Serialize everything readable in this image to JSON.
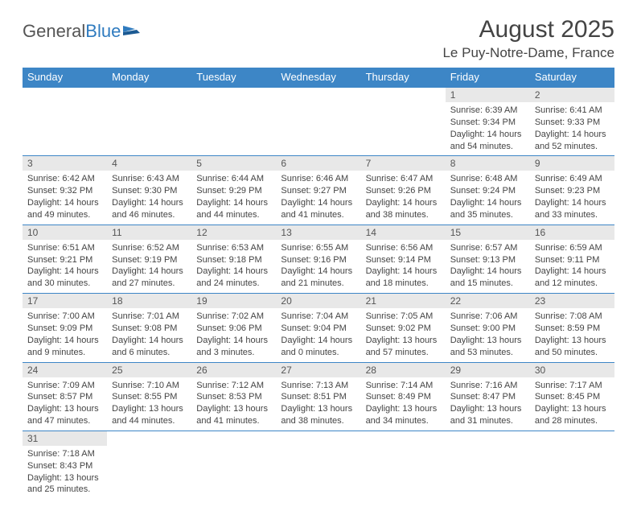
{
  "logo": {
    "text1": "General",
    "text2": "Blue"
  },
  "title": "August 2025",
  "location": "Le Puy-Notre-Dame, France",
  "weekdays": [
    "Sunday",
    "Monday",
    "Tuesday",
    "Wednesday",
    "Thursday",
    "Friday",
    "Saturday"
  ],
  "colors": {
    "header_bg": "#3d86c6",
    "header_fg": "#ffffff",
    "daynum_bg": "#e8e8e8",
    "rule": "#3d86c6"
  },
  "weeks": [
    [
      null,
      null,
      null,
      null,
      null,
      {
        "n": "1",
        "sunrise": "6:39 AM",
        "sunset": "9:34 PM",
        "day_h": "14",
        "day_m": "54"
      },
      {
        "n": "2",
        "sunrise": "6:41 AM",
        "sunset": "9:33 PM",
        "day_h": "14",
        "day_m": "52"
      }
    ],
    [
      {
        "n": "3",
        "sunrise": "6:42 AM",
        "sunset": "9:32 PM",
        "day_h": "14",
        "day_m": "49"
      },
      {
        "n": "4",
        "sunrise": "6:43 AM",
        "sunset": "9:30 PM",
        "day_h": "14",
        "day_m": "46"
      },
      {
        "n": "5",
        "sunrise": "6:44 AM",
        "sunset": "9:29 PM",
        "day_h": "14",
        "day_m": "44"
      },
      {
        "n": "6",
        "sunrise": "6:46 AM",
        "sunset": "9:27 PM",
        "day_h": "14",
        "day_m": "41"
      },
      {
        "n": "7",
        "sunrise": "6:47 AM",
        "sunset": "9:26 PM",
        "day_h": "14",
        "day_m": "38"
      },
      {
        "n": "8",
        "sunrise": "6:48 AM",
        "sunset": "9:24 PM",
        "day_h": "14",
        "day_m": "35"
      },
      {
        "n": "9",
        "sunrise": "6:49 AM",
        "sunset": "9:23 PM",
        "day_h": "14",
        "day_m": "33"
      }
    ],
    [
      {
        "n": "10",
        "sunrise": "6:51 AM",
        "sunset": "9:21 PM",
        "day_h": "14",
        "day_m": "30"
      },
      {
        "n": "11",
        "sunrise": "6:52 AM",
        "sunset": "9:19 PM",
        "day_h": "14",
        "day_m": "27"
      },
      {
        "n": "12",
        "sunrise": "6:53 AM",
        "sunset": "9:18 PM",
        "day_h": "14",
        "day_m": "24"
      },
      {
        "n": "13",
        "sunrise": "6:55 AM",
        "sunset": "9:16 PM",
        "day_h": "14",
        "day_m": "21"
      },
      {
        "n": "14",
        "sunrise": "6:56 AM",
        "sunset": "9:14 PM",
        "day_h": "14",
        "day_m": "18"
      },
      {
        "n": "15",
        "sunrise": "6:57 AM",
        "sunset": "9:13 PM",
        "day_h": "14",
        "day_m": "15"
      },
      {
        "n": "16",
        "sunrise": "6:59 AM",
        "sunset": "9:11 PM",
        "day_h": "14",
        "day_m": "12"
      }
    ],
    [
      {
        "n": "17",
        "sunrise": "7:00 AM",
        "sunset": "9:09 PM",
        "day_h": "14",
        "day_m": "9"
      },
      {
        "n": "18",
        "sunrise": "7:01 AM",
        "sunset": "9:08 PM",
        "day_h": "14",
        "day_m": "6"
      },
      {
        "n": "19",
        "sunrise": "7:02 AM",
        "sunset": "9:06 PM",
        "day_h": "14",
        "day_m": "3"
      },
      {
        "n": "20",
        "sunrise": "7:04 AM",
        "sunset": "9:04 PM",
        "day_h": "14",
        "day_m": "0"
      },
      {
        "n": "21",
        "sunrise": "7:05 AM",
        "sunset": "9:02 PM",
        "day_h": "13",
        "day_m": "57"
      },
      {
        "n": "22",
        "sunrise": "7:06 AM",
        "sunset": "9:00 PM",
        "day_h": "13",
        "day_m": "53"
      },
      {
        "n": "23",
        "sunrise": "7:08 AM",
        "sunset": "8:59 PM",
        "day_h": "13",
        "day_m": "50"
      }
    ],
    [
      {
        "n": "24",
        "sunrise": "7:09 AM",
        "sunset": "8:57 PM",
        "day_h": "13",
        "day_m": "47"
      },
      {
        "n": "25",
        "sunrise": "7:10 AM",
        "sunset": "8:55 PM",
        "day_h": "13",
        "day_m": "44"
      },
      {
        "n": "26",
        "sunrise": "7:12 AM",
        "sunset": "8:53 PM",
        "day_h": "13",
        "day_m": "41"
      },
      {
        "n": "27",
        "sunrise": "7:13 AM",
        "sunset": "8:51 PM",
        "day_h": "13",
        "day_m": "38"
      },
      {
        "n": "28",
        "sunrise": "7:14 AM",
        "sunset": "8:49 PM",
        "day_h": "13",
        "day_m": "34"
      },
      {
        "n": "29",
        "sunrise": "7:16 AM",
        "sunset": "8:47 PM",
        "day_h": "13",
        "day_m": "31"
      },
      {
        "n": "30",
        "sunrise": "7:17 AM",
        "sunset": "8:45 PM",
        "day_h": "13",
        "day_m": "28"
      }
    ],
    [
      {
        "n": "31",
        "sunrise": "7:18 AM",
        "sunset": "8:43 PM",
        "day_h": "13",
        "day_m": "25"
      },
      null,
      null,
      null,
      null,
      null,
      null
    ]
  ]
}
